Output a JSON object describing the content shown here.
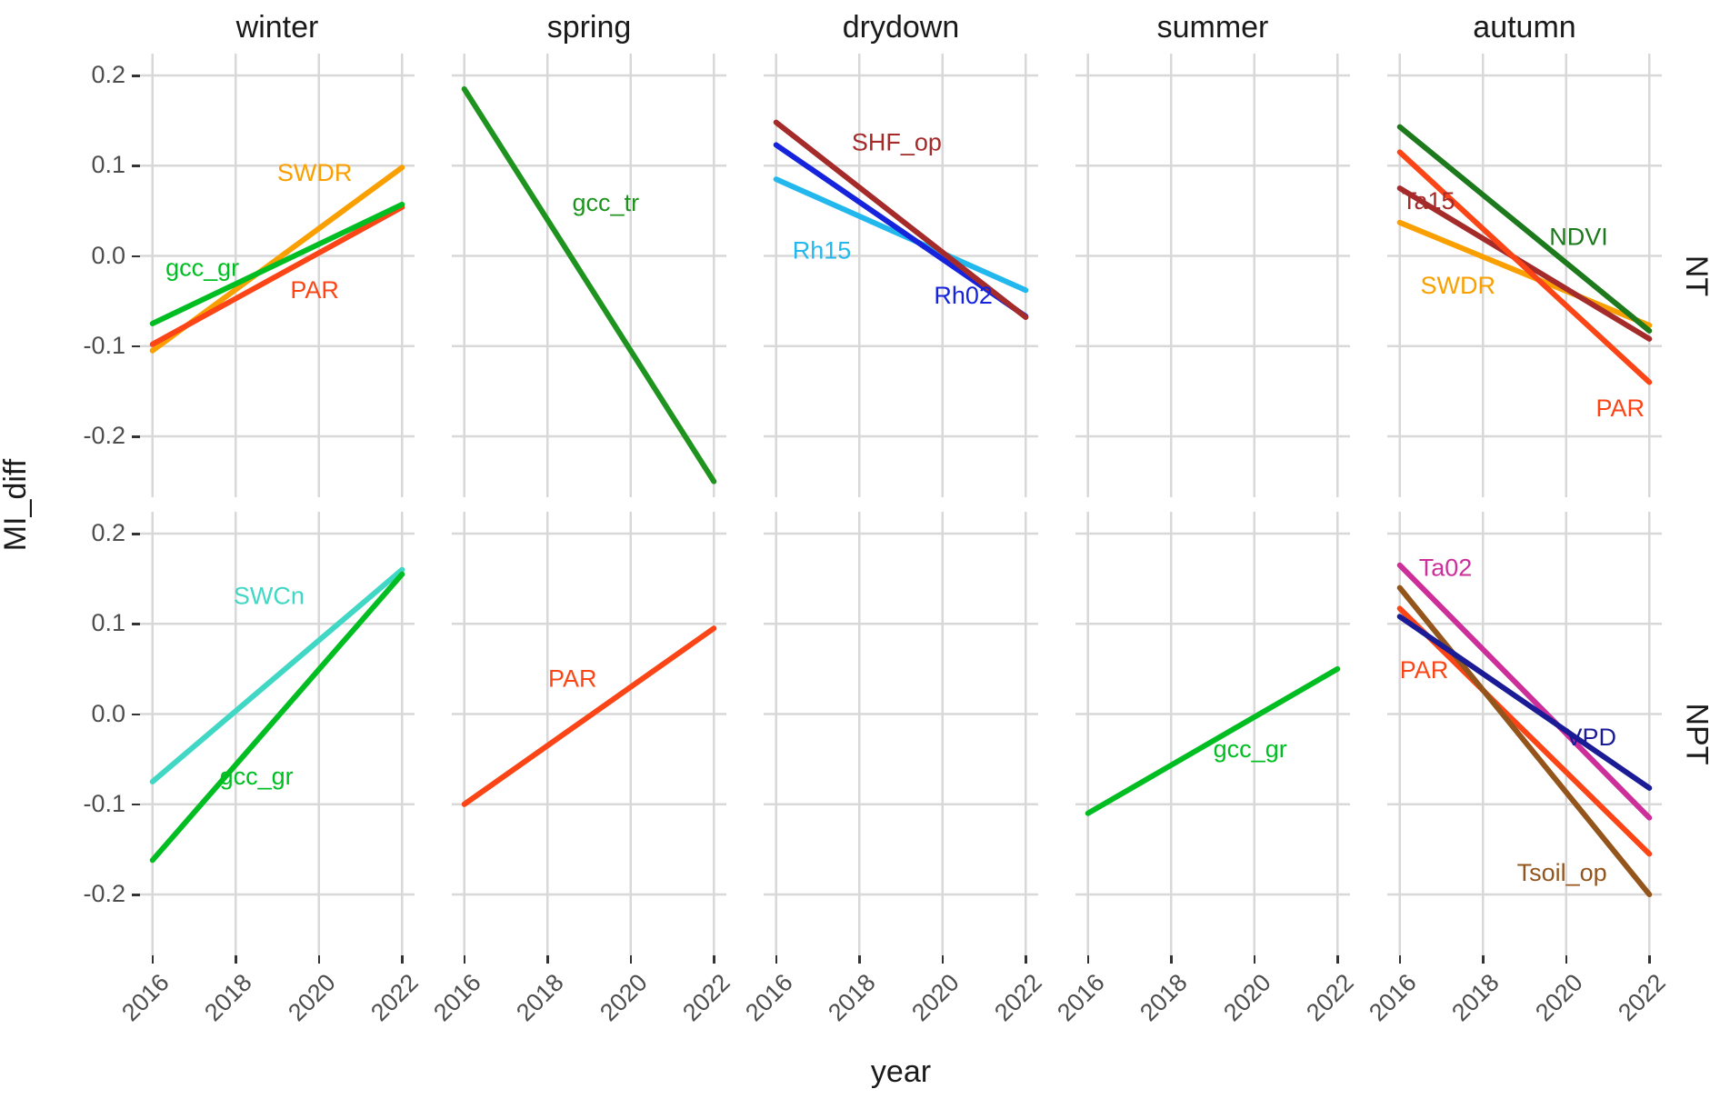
{
  "chart_data": {
    "type": "line",
    "xlabel": "year",
    "ylabel": "MI_diff",
    "facet_columns": [
      "winter",
      "spring",
      "drydown",
      "summer",
      "autumn"
    ],
    "facet_rows": [
      "NT",
      "NPT"
    ],
    "x_ticks": [
      2016,
      2018,
      2020,
      2022
    ],
    "x_tick_labels": [
      "2016",
      "2018",
      "2020",
      "2022"
    ],
    "y_ticks": [
      0.2,
      0.1,
      0.0,
      -0.1,
      -0.2
    ],
    "y_tick_labels": [
      "0.2",
      "0.1",
      "0.0",
      "-0.1",
      "-0.2"
    ],
    "x_domain": [
      2015.7,
      2022.3
    ],
    "y_domain": [
      -0.2675,
      0.2242
    ],
    "grid": true,
    "legend": "none (direct line labels)",
    "colors": {
      "gcc_gr": "#00be22",
      "gcc_tr": "#1e941e",
      "NDVI": "#1c791c",
      "SWDR": "#f9a000",
      "PAR": "#fb4516",
      "SHF_op": "#a52a2a",
      "Ta15": "#a52a2a",
      "Rh02": "#1523dc",
      "Rh15": "#22b8ee",
      "SWCn": "#40d8c4",
      "Ta02": "#cc2e9a",
      "VPD": "#1b1b96",
      "Tsoil_op": "#93551c",
      "gridline": "#d8d8d8",
      "tick_text": "#4d4d4d",
      "title_text": "#1a1a1a"
    },
    "series_by_panel": {
      "NT": {
        "winter": [
          {
            "name": "SWDR",
            "x": [
              2016,
              2022
            ],
            "y": [
              -0.105,
              0.098
            ],
            "label": {
              "text": "SWDR",
              "x": 2019.9,
              "y": 0.083,
              "anchor": "middle"
            }
          },
          {
            "name": "PAR",
            "x": [
              2016,
              2022
            ],
            "y": [
              -0.098,
              0.054
            ],
            "label": {
              "text": "PAR",
              "x": 2019.9,
              "y": -0.047,
              "anchor": "middle"
            }
          },
          {
            "name": "gcc_gr",
            "x": [
              2016,
              2022
            ],
            "y": [
              -0.075,
              0.057
            ],
            "label": {
              "text": "gcc_gr",
              "x": 2017.2,
              "y": -0.022,
              "anchor": "middle"
            }
          }
        ],
        "spring": [
          {
            "name": "gcc_tr",
            "x": [
              2016,
              2022
            ],
            "y": [
              0.185,
              -0.25
            ],
            "label": {
              "text": "gcc_tr",
              "x": 2019.4,
              "y": 0.05,
              "anchor": "middle"
            }
          }
        ],
        "drydown": [
          {
            "name": "Rh15",
            "x": [
              2016,
              2022
            ],
            "y": [
              0.085,
              -0.038
            ],
            "label": {
              "text": "Rh15",
              "x": 2017.1,
              "y": -0.003,
              "anchor": "middle"
            }
          },
          {
            "name": "Rh02",
            "x": [
              2016,
              2022
            ],
            "y": [
              0.123,
              -0.067
            ],
            "label": {
              "text": "Rh02",
              "x": 2020.5,
              "y": -0.053,
              "anchor": "middle"
            }
          },
          {
            "name": "SHF_op",
            "x": [
              2016,
              2022
            ],
            "y": [
              0.148,
              -0.068
            ],
            "label": {
              "text": "SHF_op",
              "x": 2018.9,
              "y": 0.117,
              "anchor": "middle"
            }
          }
        ],
        "summer": [],
        "autumn": [
          {
            "name": "SWDR",
            "x": [
              2016,
              2022
            ],
            "y": [
              0.037,
              -0.077
            ],
            "label": {
              "text": "SWDR",
              "x": 2017.4,
              "y": -0.042,
              "anchor": "middle"
            }
          },
          {
            "name": "Ta15",
            "x": [
              2016,
              2022
            ],
            "y": [
              0.075,
              -0.092
            ],
            "label": {
              "text": "Ta15",
              "x": 2016.05,
              "y": 0.052,
              "anchor": "start"
            }
          },
          {
            "name": "PAR",
            "x": [
              2016,
              2022
            ],
            "y": [
              0.115,
              -0.14
            ],
            "label": {
              "text": "PAR",
              "x": 2021.3,
              "y": -0.178,
              "anchor": "middle"
            }
          },
          {
            "name": "NDVI",
            "x": [
              2016,
              2022
            ],
            "y": [
              0.143,
              -0.083
            ],
            "label": {
              "text": "NDVI",
              "x": 2020.3,
              "y": 0.012,
              "anchor": "middle"
            }
          }
        ]
      },
      "NPT": {
        "winter": [
          {
            "name": "SWCn",
            "x": [
              2016,
              2022
            ],
            "y": [
              -0.075,
              0.16
            ],
            "label": {
              "text": "SWCn",
              "x": 2018.8,
              "y": 0.122,
              "anchor": "middle"
            }
          },
          {
            "name": "gcc_gr",
            "x": [
              2016,
              2022
            ],
            "y": [
              -0.162,
              0.155
            ],
            "label": {
              "text": "gcc_gr",
              "x": 2018.5,
              "y": -0.078,
              "anchor": "middle"
            }
          }
        ],
        "spring": [
          {
            "name": "PAR",
            "x": [
              2016,
              2022
            ],
            "y": [
              -0.1,
              0.095
            ],
            "label": {
              "text": "PAR",
              "x": 2018.6,
              "y": 0.03,
              "anchor": "middle"
            }
          }
        ],
        "drydown": [],
        "summer": [
          {
            "name": "gcc_gr",
            "x": [
              2016,
              2022
            ],
            "y": [
              -0.11,
              0.05
            ],
            "label": {
              "text": "gcc_gr",
              "x": 2019.9,
              "y": -0.048,
              "anchor": "middle"
            }
          }
        ],
        "autumn": [
          {
            "name": "Ta02",
            "x": [
              2016,
              2022
            ],
            "y": [
              0.165,
              -0.115
            ],
            "label": {
              "text": "Ta02",
              "x": 2017.1,
              "y": 0.153,
              "anchor": "middle"
            }
          },
          {
            "name": "PAR",
            "x": [
              2016,
              2022
            ],
            "y": [
              0.117,
              -0.155
            ],
            "label": {
              "text": "PAR",
              "x": 2016.0,
              "y": 0.04,
              "anchor": "start"
            }
          },
          {
            "name": "Tsoil_op",
            "x": [
              2016,
              2022
            ],
            "y": [
              0.14,
              -0.2
            ],
            "label": {
              "text": "Tsoil_op",
              "x": 2019.9,
              "y": -0.185,
              "anchor": "middle"
            }
          },
          {
            "name": "VPD",
            "x": [
              2016,
              2022
            ],
            "y": [
              0.108,
              -0.082
            ],
            "label": {
              "text": "VPD",
              "x": 2020.6,
              "y": -0.035,
              "anchor": "middle"
            }
          }
        ]
      }
    }
  }
}
